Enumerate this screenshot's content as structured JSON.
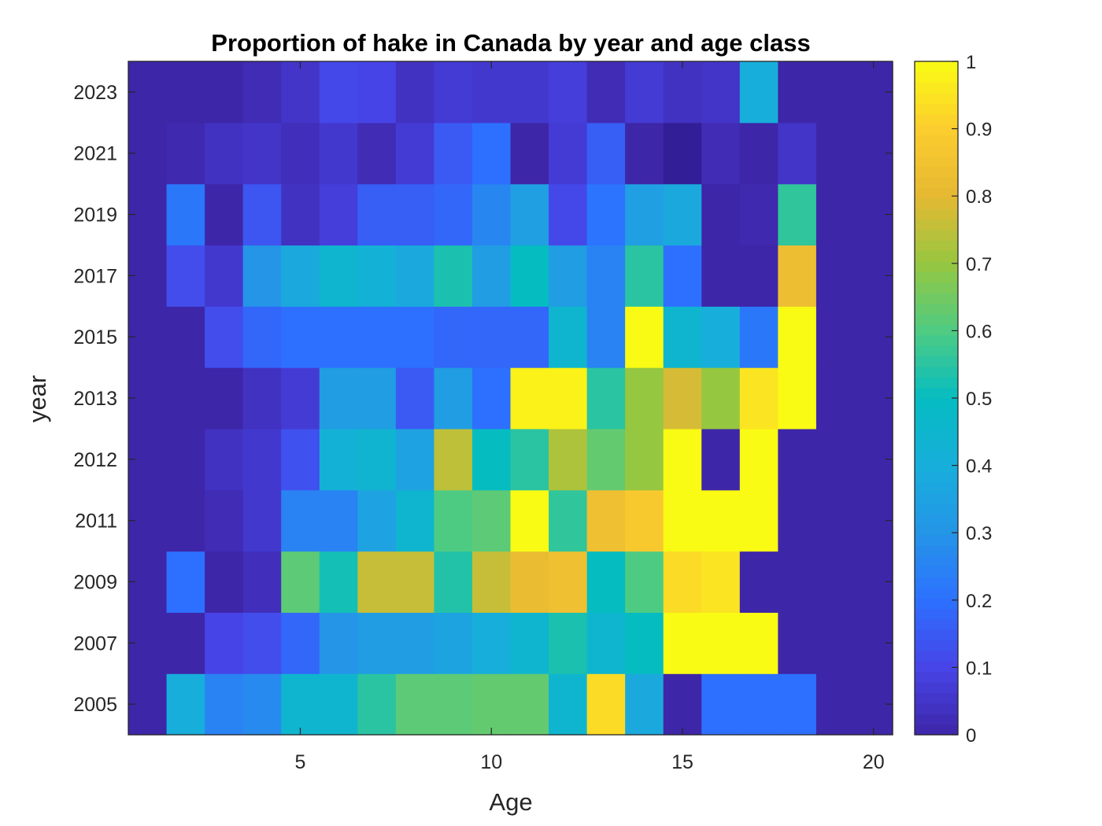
{
  "chart_data": {
    "type": "heatmap",
    "title": "Proportion of hake in Canada by year and age class",
    "xlabel": "Age",
    "ylabel": "year",
    "x": [
      1,
      2,
      3,
      4,
      5,
      6,
      7,
      8,
      9,
      10,
      11,
      12,
      13,
      14,
      15,
      16,
      17,
      18,
      19,
      20
    ],
    "y": [
      2005,
      2007,
      2009,
      2011,
      2012,
      2013,
      2015,
      2017,
      2019,
      2021,
      2023
    ],
    "x_ticks": [
      5,
      10,
      15,
      20
    ],
    "xlim": [
      0.5,
      20.5
    ],
    "colormap": "parula",
    "color_range": [
      0,
      1
    ],
    "colorbar_ticks": [
      0,
      0.1,
      0.2,
      0.3,
      0.4,
      0.5,
      0.6,
      0.7,
      0.8,
      0.9,
      1
    ],
    "values": [
      [
        0.0,
        0.4,
        0.25,
        0.27,
        0.45,
        0.45,
        0.55,
        0.62,
        0.62,
        0.63,
        0.63,
        0.45,
        0.93,
        0.38,
        0.0,
        0.2,
        0.2,
        0.2,
        0.0,
        0.0
      ],
      [
        0.0,
        0.0,
        0.1,
        0.12,
        0.18,
        0.3,
        0.33,
        0.33,
        0.36,
        0.4,
        0.45,
        0.53,
        0.45,
        0.5,
        1.0,
        1.0,
        1.0,
        0.0,
        0.0,
        0.0
      ],
      [
        0.0,
        0.2,
        0.0,
        0.03,
        0.62,
        0.52,
        0.76,
        0.76,
        0.54,
        0.76,
        0.82,
        0.84,
        0.5,
        0.6,
        0.93,
        0.95,
        0.0,
        0.0,
        0.0,
        0.0
      ],
      [
        0.0,
        0.0,
        0.02,
        0.06,
        0.25,
        0.25,
        0.35,
        0.45,
        0.6,
        0.62,
        1.0,
        0.56,
        0.84,
        0.88,
        1.0,
        1.0,
        1.0,
        0.0,
        0.0,
        0.0
      ],
      [
        0.0,
        0.0,
        0.04,
        0.06,
        0.13,
        0.42,
        0.44,
        0.35,
        0.75,
        0.5,
        0.55,
        0.73,
        0.63,
        0.7,
        1.0,
        0.0,
        1.0,
        0.0,
        0.0,
        0.0
      ],
      [
        0.0,
        0.0,
        0.0,
        0.04,
        0.07,
        0.33,
        0.33,
        0.15,
        0.33,
        0.2,
        0.98,
        0.98,
        0.55,
        0.7,
        0.78,
        0.7,
        0.95,
        1.0,
        0.0,
        0.0
      ],
      [
        0.0,
        0.0,
        0.12,
        0.18,
        0.2,
        0.2,
        0.2,
        0.2,
        0.18,
        0.18,
        0.18,
        0.45,
        0.25,
        1.0,
        0.45,
        0.4,
        0.22,
        1.0,
        0.0,
        0.0
      ],
      [
        0.0,
        0.12,
        0.06,
        0.3,
        0.38,
        0.45,
        0.42,
        0.38,
        0.53,
        0.33,
        0.5,
        0.33,
        0.25,
        0.55,
        0.2,
        0.0,
        0.0,
        0.83,
        0.0,
        0.0
      ],
      [
        0.0,
        0.22,
        0.0,
        0.14,
        0.04,
        0.08,
        0.16,
        0.16,
        0.18,
        0.26,
        0.34,
        0.11,
        0.21,
        0.34,
        0.38,
        0.0,
        0.01,
        0.56,
        0.0,
        0.0
      ],
      [
        0.0,
        0.01,
        0.04,
        0.05,
        0.03,
        0.06,
        0.02,
        0.07,
        0.15,
        0.2,
        0.0,
        0.07,
        0.16,
        0.0,
        -0.02,
        0.02,
        0.0,
        0.05,
        0.0,
        0.0
      ],
      [
        0.0,
        0.0,
        0.0,
        0.02,
        0.05,
        0.11,
        0.1,
        0.04,
        0.07,
        0.06,
        0.06,
        0.08,
        0.02,
        0.07,
        0.04,
        0.05,
        0.4,
        0.0,
        0.0,
        0.0
      ]
    ]
  }
}
